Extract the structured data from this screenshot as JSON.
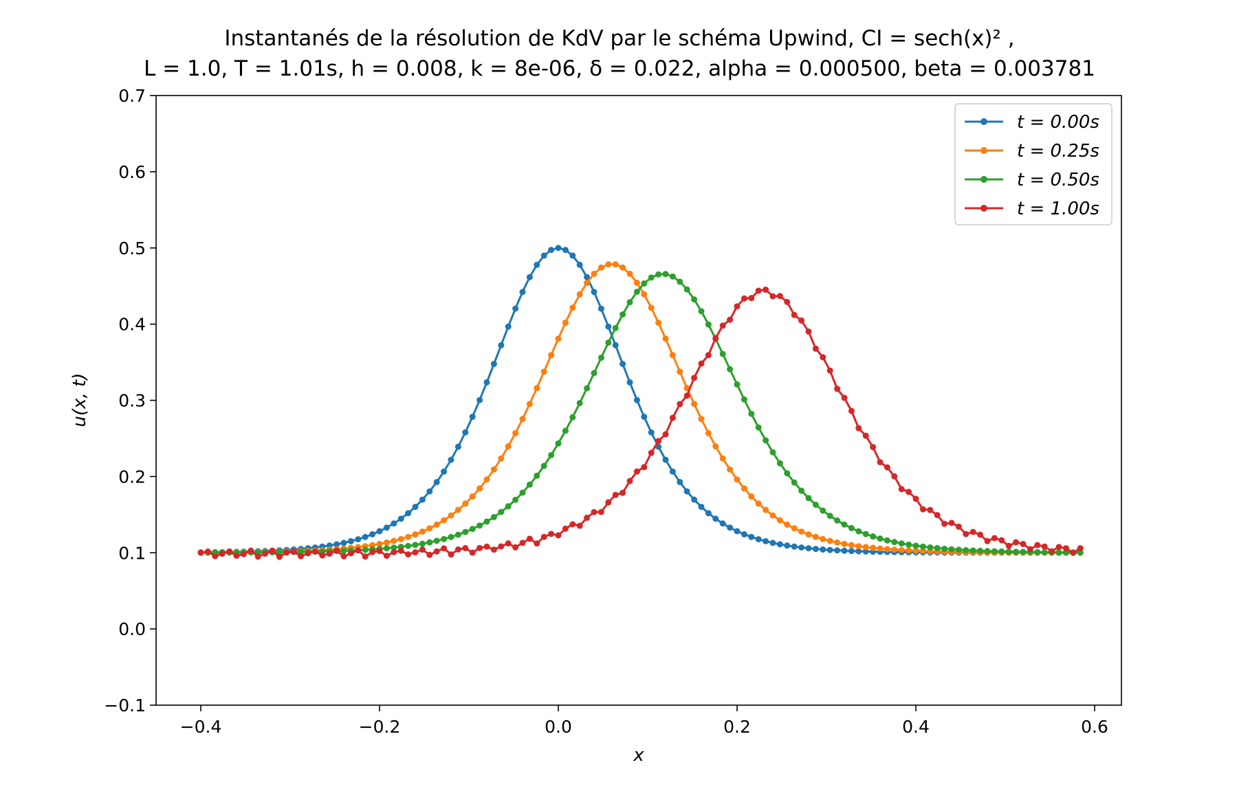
{
  "chart_data": {
    "type": "line",
    "title_line1": "Instantanés de la résolution de KdV par le schéma Upwind, CI = sech(x)² ,",
    "title_line2": "L = 1.0, T = 1.01s, h = 0.008, k = 8e-06, δ = 0.022,  alpha = 0.000500, beta = 0.003781",
    "xlabel": "x",
    "ylabel": "u(x, t)",
    "xlim": [
      -0.45,
      0.63
    ],
    "ylim": [
      -0.1,
      0.7
    ],
    "xticks": [
      -0.4,
      -0.2,
      0.0,
      0.2,
      0.4,
      0.6
    ],
    "xtick_labels": [
      "−0.4",
      "−0.2",
      "0.0",
      "0.2",
      "0.4",
      "0.6"
    ],
    "yticks": [
      -0.1,
      0.0,
      0.1,
      0.2,
      0.3,
      0.4,
      0.5,
      0.6,
      0.7
    ],
    "ytick_labels": [
      "−0.1",
      "0.0",
      "0.1",
      "0.2",
      "0.3",
      "0.4",
      "0.5",
      "0.6",
      "0.7"
    ],
    "legend_position": "top-right",
    "grid": false,
    "x_range": [
      -0.4,
      0.584
    ],
    "x_step": 0.008,
    "series": [
      {
        "name": "t = 0.00s",
        "color": "#1f77b4",
        "peak_x": 0.0,
        "peak_y": 0.5,
        "width": 0.1,
        "baseline": 0.1,
        "oscillation": 0.0
      },
      {
        "name": "t = 0.25s",
        "color": "#ff7f0e",
        "peak_x": 0.06,
        "peak_y": 0.479,
        "width": 0.107,
        "baseline": 0.1,
        "oscillation": 0.0
      },
      {
        "name": "t = 0.50s",
        "color": "#2ca02c",
        "peak_x": 0.117,
        "peak_y": 0.466,
        "width": 0.112,
        "baseline": 0.1,
        "oscillation": 0.0
      },
      {
        "name": "t = 1.00s",
        "color": "#d62728",
        "peak_x": 0.23,
        "peak_y": 0.443,
        "width": 0.118,
        "baseline": 0.1,
        "oscillation": 0.004
      }
    ]
  }
}
